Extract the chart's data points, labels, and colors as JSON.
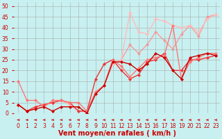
{
  "xlabel": "Vent moyen/en rafales ( km/h )",
  "xlim": [
    -0.5,
    23.5
  ],
  "ylim": [
    0,
    52
  ],
  "yticks": [
    0,
    5,
    10,
    15,
    20,
    25,
    30,
    35,
    40,
    45,
    50
  ],
  "xticks": [
    0,
    1,
    2,
    3,
    4,
    5,
    6,
    7,
    8,
    9,
    10,
    11,
    12,
    13,
    14,
    15,
    16,
    17,
    18,
    19,
    20,
    21,
    22,
    23
  ],
  "background_color": "#c8f0f0",
  "grid_color": "#aaaaaa",
  "lines": [
    {
      "x": [
        0,
        1,
        2,
        3,
        4,
        5,
        6,
        7,
        8,
        9,
        10,
        11,
        12,
        13,
        14,
        15,
        16,
        17,
        18,
        19,
        20,
        21,
        22,
        23
      ],
      "y": [
        4,
        1,
        2,
        3,
        1,
        3,
        3,
        3,
        0,
        9,
        13,
        24,
        24,
        23,
        20,
        23,
        28,
        26,
        20,
        16,
        26,
        27,
        28,
        27
      ],
      "color": "#cc0000",
      "marker": "D",
      "markersize": 2.0,
      "linewidth": 1.0,
      "zorder": 5
    },
    {
      "x": [
        0,
        1,
        2,
        3,
        4,
        5,
        6,
        7,
        8,
        9,
        10,
        11,
        12,
        13,
        14,
        15,
        16,
        17,
        18,
        19,
        20,
        21,
        22,
        23
      ],
      "y": [
        15,
        6,
        6,
        3,
        6,
        6,
        5,
        5,
        1,
        10,
        13,
        25,
        22,
        17,
        21,
        25,
        26,
        27,
        41,
        16,
        24,
        26,
        28,
        28
      ],
      "color": "#ff7777",
      "marker": "D",
      "markersize": 2.0,
      "linewidth": 1.0,
      "zorder": 4
    },
    {
      "x": [
        0,
        1,
        2,
        3,
        4,
        5,
        6,
        7,
        8,
        9,
        10,
        11,
        12,
        13,
        14,
        15,
        16,
        17,
        18,
        19,
        20,
        21,
        22,
        23
      ],
      "y": [
        4,
        1,
        3,
        4,
        5,
        6,
        5,
        1,
        1,
        16,
        23,
        25,
        20,
        16,
        18,
        24,
        25,
        28,
        20,
        20,
        25,
        25,
        26,
        27
      ],
      "color": "#ee3333",
      "marker": "D",
      "markersize": 2.0,
      "linewidth": 1.0,
      "zorder": 3
    },
    {
      "x": [
        0,
        1,
        2,
        3,
        4,
        5,
        6,
        7,
        8,
        9,
        10,
        11,
        12,
        13,
        14,
        15,
        16,
        17,
        18,
        19,
        20,
        21,
        22,
        23
      ],
      "y": [
        4,
        1,
        3,
        4,
        5,
        6,
        4,
        1,
        1,
        9,
        13,
        23,
        25,
        47,
        38,
        37,
        44,
        43,
        41,
        40,
        41,
        38,
        44,
        46
      ],
      "color": "#ffbbbb",
      "marker": "D",
      "markersize": 2.0,
      "linewidth": 1.0,
      "zorder": 2
    },
    {
      "x": [
        0,
        1,
        2,
        3,
        4,
        5,
        6,
        7,
        8,
        9,
        10,
        11,
        12,
        13,
        14,
        15,
        16,
        17,
        18,
        19,
        20,
        21,
        22,
        23
      ],
      "y": [
        4,
        1,
        3,
        4,
        5,
        6,
        4,
        1,
        1,
        9,
        13,
        23,
        25,
        32,
        28,
        32,
        38,
        34,
        30,
        37,
        41,
        36,
        45,
        46
      ],
      "color": "#ff9999",
      "marker": "D",
      "markersize": 2.0,
      "linewidth": 1.0,
      "zorder": 1
    }
  ],
  "tick_fontsize": 5.5,
  "xlabel_fontsize": 7,
  "xlabel_color": "#cc0000",
  "tick_color": "#cc0000",
  "arrow_color": "#cc0000"
}
